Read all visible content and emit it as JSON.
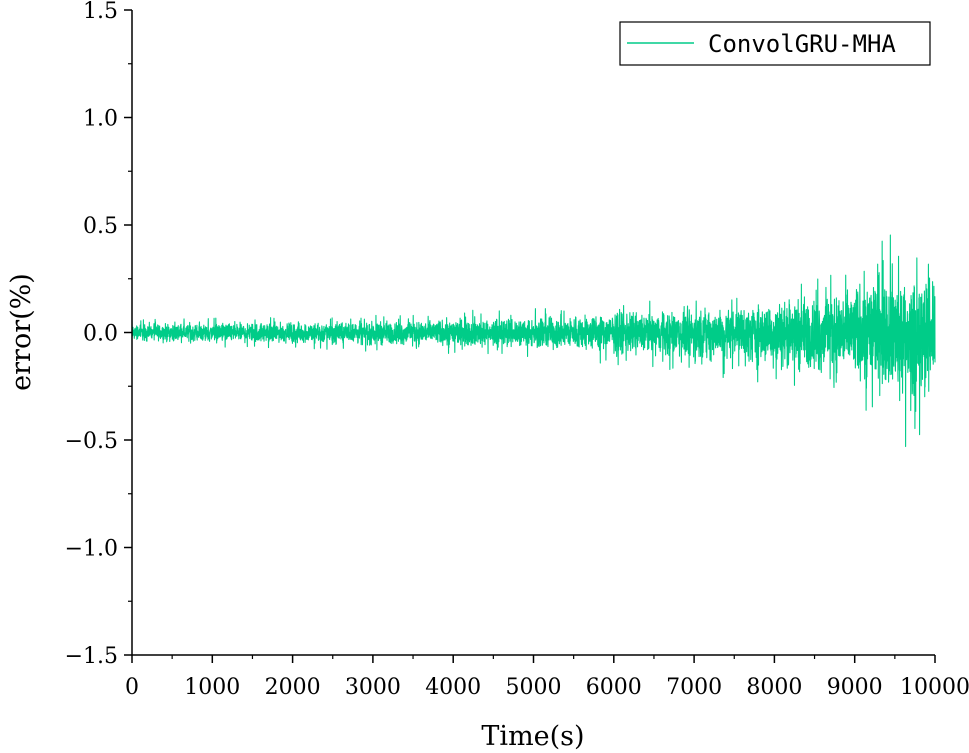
{
  "chart_data": {
    "type": "line",
    "xlabel": "Time(s)",
    "ylabel": "error(%)",
    "xlim": [
      0,
      10000
    ],
    "ylim": [
      -1.5,
      1.5
    ],
    "x_ticks": [
      0,
      1000,
      2000,
      3000,
      4000,
      5000,
      6000,
      7000,
      8000,
      9000,
      10000
    ],
    "x_tick_labels": [
      "0",
      "1000",
      "2000",
      "3000",
      "4000",
      "5000",
      "6000",
      "7000",
      "8000",
      "9000",
      "10000"
    ],
    "y_ticks": [
      -1.5,
      -1.0,
      -0.5,
      0.0,
      0.5,
      1.0,
      1.5
    ],
    "y_tick_labels": [
      "−1.5",
      "−1.0",
      "−0.5",
      "0.0",
      "0.5",
      "1.0",
      "1.5"
    ],
    "grid": false,
    "legend_position": "top-right",
    "series": [
      {
        "name": "ConvolGRU-MHA",
        "color": "#00cc88",
        "envelope_description_x": [
          0,
          1000,
          2000,
          3000,
          4000,
          5000,
          5500,
          6000,
          6500,
          7000,
          7500,
          8000,
          8500,
          9000,
          9300,
          9500,
          9700,
          9800,
          9900,
          10000
        ],
        "upper_envelope": [
          0.06,
          0.07,
          0.07,
          0.08,
          0.1,
          0.12,
          0.13,
          0.14,
          0.15,
          0.17,
          0.19,
          0.22,
          0.27,
          0.35,
          0.49,
          0.45,
          0.4,
          0.38,
          0.42,
          0.61
        ],
        "lower_envelope": [
          -0.06,
          -0.07,
          -0.08,
          -0.09,
          -0.1,
          -0.12,
          -0.13,
          -0.15,
          -0.17,
          -0.2,
          -0.22,
          -0.25,
          -0.3,
          -0.36,
          -0.38,
          -0.42,
          -0.67,
          -0.55,
          -0.5,
          -0.4
        ]
      }
    ]
  }
}
